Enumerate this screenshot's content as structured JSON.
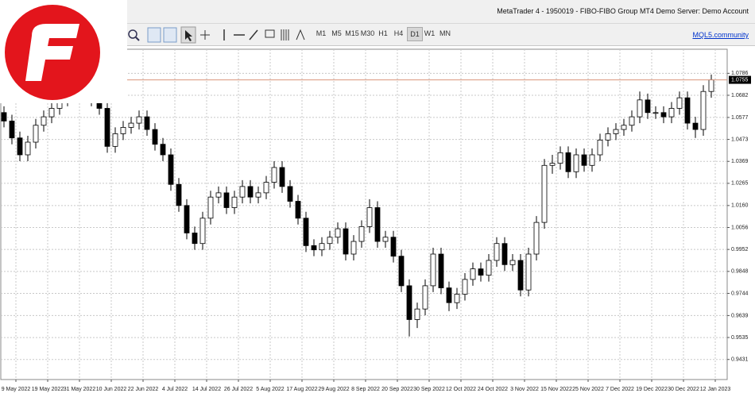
{
  "window": {
    "title": "MetaTrader 4 - 1950019 - FIBO-FIBO Group MT4 Demo Server: Demo Account"
  },
  "toolbar": {
    "timeframes": [
      "M1",
      "M5",
      "M15",
      "M30",
      "H1",
      "H4",
      "D1",
      "W1",
      "MN"
    ],
    "active": "D1",
    "link": "MQL5.community"
  },
  "chart_data": {
    "type": "candlestick",
    "categories": [
      null,
      "9 May 2022",
      null,
      null,
      null,
      "19 May 2022",
      null,
      null,
      null,
      "31 May 2022",
      null,
      null,
      null,
      "10 Jun 2022",
      null,
      null,
      null,
      "22 Jun 2022",
      null,
      null,
      null,
      "4 Jul 2022",
      null,
      null,
      null,
      "14 Jul 2022",
      null,
      null,
      null,
      "26 Jul 2022",
      null,
      null,
      null,
      "5 Aug 2022",
      null,
      null,
      null,
      "17 Aug 2022",
      null,
      null,
      null,
      "29 Aug 2022",
      null,
      null,
      null,
      "8 Sep 2022",
      null,
      null,
      null,
      "20 Sep 2022",
      null,
      null,
      null,
      "30 Sep 2022",
      null,
      null,
      null,
      "12 Oct 2022",
      null,
      null,
      null,
      "24 Oct 2022",
      null,
      null,
      null,
      "3 Nov 2022",
      null,
      null,
      null,
      "15 Nov 2022",
      null,
      null,
      null,
      "25 Nov 2022",
      null,
      null,
      null,
      "7 Dec 2022",
      null,
      null,
      null,
      "19 Dec 2022",
      null,
      null,
      null,
      "30 Dec 2022",
      null,
      null,
      null,
      "12 Jan 2023"
    ],
    "candles": [
      [
        1.06,
        1.063,
        1.053,
        1.056
      ],
      [
        1.056,
        1.059,
        1.045,
        1.048
      ],
      [
        1.048,
        1.051,
        1.037,
        1.04
      ],
      [
        1.04,
        1.049,
        1.037,
        1.046
      ],
      [
        1.046,
        1.057,
        1.043,
        1.054
      ],
      [
        1.054,
        1.061,
        1.051,
        1.058
      ],
      [
        1.058,
        1.065,
        1.055,
        1.062
      ],
      [
        1.062,
        1.069,
        1.059,
        1.066
      ],
      [
        1.066,
        1.073,
        1.063,
        1.07
      ],
      [
        1.07,
        1.075,
        1.067,
        1.072
      ],
      [
        1.072,
        1.075,
        1.065,
        1.068
      ],
      [
        1.068,
        1.071,
        1.063,
        1.066
      ],
      [
        1.066,
        1.069,
        1.059,
        1.062
      ],
      [
        1.062,
        1.065,
        1.041,
        1.044
      ],
      [
        1.044,
        1.053,
        1.041,
        1.05
      ],
      [
        1.05,
        1.056,
        1.047,
        1.053
      ],
      [
        1.053,
        1.058,
        1.05,
        1.055
      ],
      [
        1.055,
        1.061,
        1.052,
        1.058
      ],
      [
        1.058,
        1.061,
        1.049,
        1.052
      ],
      [
        1.052,
        1.055,
        1.042,
        1.045
      ],
      [
        1.045,
        1.048,
        1.037,
        1.04
      ],
      [
        1.04,
        1.043,
        1.023,
        1.026
      ],
      [
        1.026,
        1.029,
        1.013,
        1.016
      ],
      [
        1.016,
        1.019,
        1.0,
        1.003
      ],
      [
        1.003,
        1.006,
        0.995,
        0.998
      ],
      [
        0.998,
        1.013,
        0.995,
        1.01
      ],
      [
        1.01,
        1.023,
        1.007,
        1.02
      ],
      [
        1.02,
        1.025,
        1.017,
        1.022
      ],
      [
        1.022,
        1.025,
        1.012,
        1.015
      ],
      [
        1.015,
        1.023,
        1.012,
        1.02
      ],
      [
        1.02,
        1.028,
        1.017,
        1.025
      ],
      [
        1.025,
        1.028,
        1.017,
        1.02
      ],
      [
        1.02,
        1.025,
        1.017,
        1.022
      ],
      [
        1.022,
        1.03,
        1.019,
        1.027
      ],
      [
        1.027,
        1.037,
        1.024,
        1.034
      ],
      [
        1.034,
        1.037,
        1.022,
        1.025
      ],
      [
        1.025,
        1.028,
        1.015,
        1.018
      ],
      [
        1.018,
        1.021,
        1.007,
        1.01
      ],
      [
        1.01,
        1.013,
        0.994,
        0.997
      ],
      [
        0.997,
        1.0,
        0.992,
        0.995
      ],
      [
        0.995,
        1.001,
        0.992,
        0.998
      ],
      [
        0.998,
        1.004,
        0.995,
        1.001
      ],
      [
        1.001,
        1.008,
        0.998,
        1.005
      ],
      [
        1.005,
        1.008,
        0.99,
        0.993
      ],
      [
        0.993,
        1.002,
        0.99,
        0.999
      ],
      [
        0.999,
        1.009,
        0.996,
        1.006
      ],
      [
        1.006,
        1.019,
        1.003,
        1.015
      ],
      [
        1.015,
        1.018,
        0.996,
        0.999
      ],
      [
        0.999,
        1.004,
        0.996,
        1.001
      ],
      [
        1.001,
        1.004,
        0.989,
        0.992
      ],
      [
        0.992,
        0.995,
        0.975,
        0.978
      ],
      [
        0.978,
        0.981,
        0.954,
        0.962
      ],
      [
        0.962,
        0.97,
        0.958,
        0.967
      ],
      [
        0.967,
        0.981,
        0.964,
        0.978
      ],
      [
        0.978,
        0.996,
        0.975,
        0.993
      ],
      [
        0.993,
        0.996,
        0.974,
        0.977
      ],
      [
        0.977,
        0.98,
        0.966,
        0.97
      ],
      [
        0.97,
        0.977,
        0.967,
        0.974
      ],
      [
        0.974,
        0.984,
        0.971,
        0.981
      ],
      [
        0.981,
        0.989,
        0.978,
        0.986
      ],
      [
        0.986,
        0.989,
        0.98,
        0.983
      ],
      [
        0.983,
        0.993,
        0.98,
        0.99
      ],
      [
        0.99,
        1.001,
        0.987,
        0.998
      ],
      [
        0.998,
        1.001,
        0.985,
        0.988
      ],
      [
        0.988,
        0.993,
        0.985,
        0.99
      ],
      [
        0.99,
        0.993,
        0.973,
        0.976
      ],
      [
        0.976,
        0.996,
        0.973,
        0.993
      ],
      [
        0.993,
        1.011,
        0.99,
        1.008
      ],
      [
        1.008,
        1.038,
        1.005,
        1.035
      ],
      [
        1.035,
        1.04,
        1.031,
        1.036
      ],
      [
        1.036,
        1.044,
        1.033,
        1.041
      ],
      [
        1.041,
        1.044,
        1.029,
        1.032
      ],
      [
        1.032,
        1.043,
        1.029,
        1.04
      ],
      [
        1.04,
        1.043,
        1.032,
        1.035
      ],
      [
        1.035,
        1.043,
        1.032,
        1.04
      ],
      [
        1.04,
        1.05,
        1.037,
        1.047
      ],
      [
        1.047,
        1.053,
        1.044,
        1.05
      ],
      [
        1.05,
        1.055,
        1.047,
        1.052
      ],
      [
        1.052,
        1.057,
        1.049,
        1.054
      ],
      [
        1.054,
        1.061,
        1.051,
        1.058
      ],
      [
        1.058,
        1.07,
        1.055,
        1.066
      ],
      [
        1.066,
        1.069,
        1.057,
        1.06
      ],
      [
        1.06,
        1.063,
        1.057,
        1.06
      ],
      [
        1.06,
        1.063,
        1.055,
        1.058
      ],
      [
        1.058,
        1.065,
        1.055,
        1.062
      ],
      [
        1.062,
        1.07,
        1.059,
        1.067
      ],
      [
        1.067,
        1.07,
        1.052,
        1.055
      ],
      [
        1.055,
        1.058,
        1.048,
        1.052
      ],
      [
        1.052,
        1.073,
        1.049,
        1.07
      ],
      [
        1.07,
        1.078,
        1.067,
        1.0755
      ]
    ],
    "current_price": 1.0755,
    "ylim": [
      0.9336,
      1.09
    ],
    "yticks": [
      1.0786,
      1.0682,
      1.0577,
      1.0473,
      1.0369,
      1.0265,
      {
        "value": 1.016,
        "label": "1.0160"
      },
      1.0056,
      0.9952,
      0.9848,
      0.9744,
      0.9639,
      0.9535,
      0.9431
    ],
    "grid": true
  }
}
